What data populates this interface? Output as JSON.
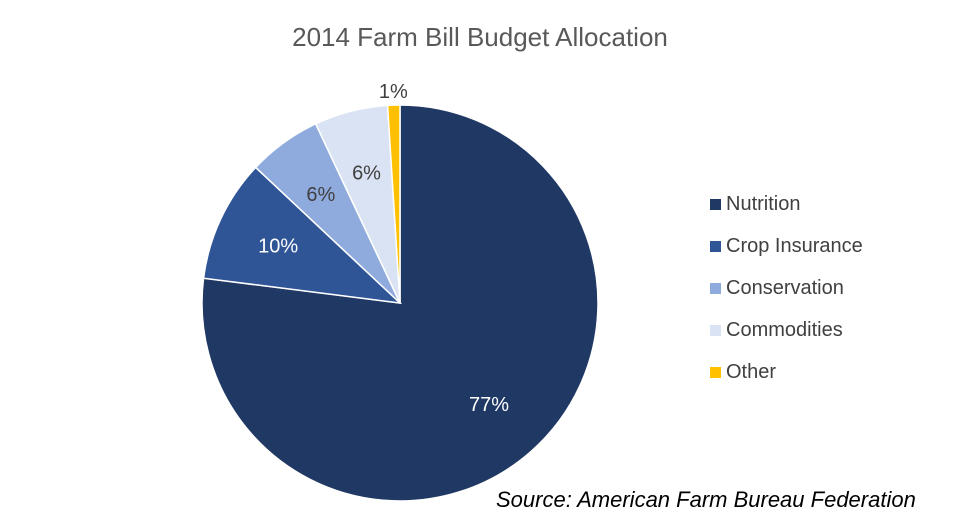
{
  "chart_data": {
    "type": "pie",
    "title": "2014 Farm Bill Budget Allocation",
    "source": "Source: American Farm Bureau Federation",
    "legend_position": "right",
    "slices": [
      {
        "label": "Nutrition",
        "value": 77,
        "value_label": "77%",
        "color": "#203864"
      },
      {
        "label": "Crop Insurance",
        "value": 10,
        "value_label": "10%",
        "color": "#2F5597"
      },
      {
        "label": "Conservation",
        "value": 6,
        "value_label": "6%",
        "color": "#8FAADC"
      },
      {
        "label": "Commodities",
        "value": 6,
        "value_label": "6%",
        "color": "#DAE3F3"
      },
      {
        "label": "Other",
        "value": 1,
        "value_label": "1%",
        "color": "#FFC000"
      }
    ]
  }
}
